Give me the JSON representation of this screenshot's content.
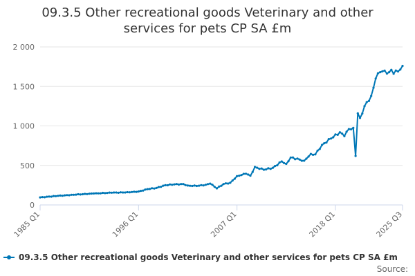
{
  "chart_data": {
    "type": "line",
    "title_lines": [
      "09.3.5 Other recreational goods Veterinary and other",
      "services for pets CP SA £m"
    ],
    "source_label": "Source:",
    "colors": {
      "series": "#0077b6",
      "grid": "#e6e6e6",
      "axis": "#ccd6eb",
      "text": "#666666",
      "title": "#333333"
    },
    "y_axis": {
      "min": 0,
      "max": 2000,
      "ticks": [
        0,
        500,
        1000,
        1500,
        2000
      ],
      "tick_labels": [
        "0",
        "500",
        "1 000",
        "1 500",
        "2 000"
      ]
    },
    "x_axis": {
      "start_year": 1985,
      "start_quarter": 1,
      "end_year": 2025,
      "end_quarter": 3,
      "ticks": [
        {
          "label": "1985 Q1",
          "index": 0
        },
        {
          "label": "1996 Q1",
          "index": 44
        },
        {
          "label": "2007 Q1",
          "index": 88
        },
        {
          "label": "2018 Q1",
          "index": 132
        },
        {
          "label": "2025 Q3",
          "index": 162
        }
      ]
    },
    "anchors": [
      [
        0,
        95
      ],
      [
        8,
        115
      ],
      [
        16,
        130
      ],
      [
        24,
        145
      ],
      [
        32,
        155
      ],
      [
        40,
        160
      ],
      [
        44,
        170
      ],
      [
        48,
        200
      ],
      [
        52,
        215
      ],
      [
        56,
        250
      ],
      [
        60,
        260
      ],
      [
        64,
        265
      ],
      [
        66,
        245
      ],
      [
        70,
        240
      ],
      [
        74,
        255
      ],
      [
        76,
        270
      ],
      [
        79,
        210
      ],
      [
        82,
        265
      ],
      [
        85,
        280
      ],
      [
        88,
        365
      ],
      [
        92,
        395
      ],
      [
        94,
        370
      ],
      [
        96,
        480
      ],
      [
        100,
        445
      ],
      [
        104,
        470
      ],
      [
        108,
        550
      ],
      [
        110,
        520
      ],
      [
        112,
        600
      ],
      [
        116,
        575
      ],
      [
        118,
        560
      ],
      [
        121,
        645
      ],
      [
        123,
        640
      ],
      [
        126,
        760
      ],
      [
        130,
        840
      ],
      [
        134,
        920
      ],
      [
        136,
        870
      ],
      [
        138,
        960
      ],
      [
        140,
        975
      ],
      [
        141,
        620
      ],
      [
        142,
        1160
      ],
      [
        143,
        1100
      ],
      [
        145,
        1250
      ],
      [
        148,
        1380
      ],
      [
        150,
        1600
      ],
      [
        152,
        1680
      ],
      [
        154,
        1700
      ],
      [
        156,
        1680
      ],
      [
        157,
        1710
      ],
      [
        158,
        1660
      ],
      [
        160,
        1690
      ],
      [
        162,
        1760
      ]
    ],
    "series": [
      {
        "name": "09.3.5 Other recreational goods Veterinary and other services for pets CP SA £m",
        "count": 163
      }
    ]
  }
}
